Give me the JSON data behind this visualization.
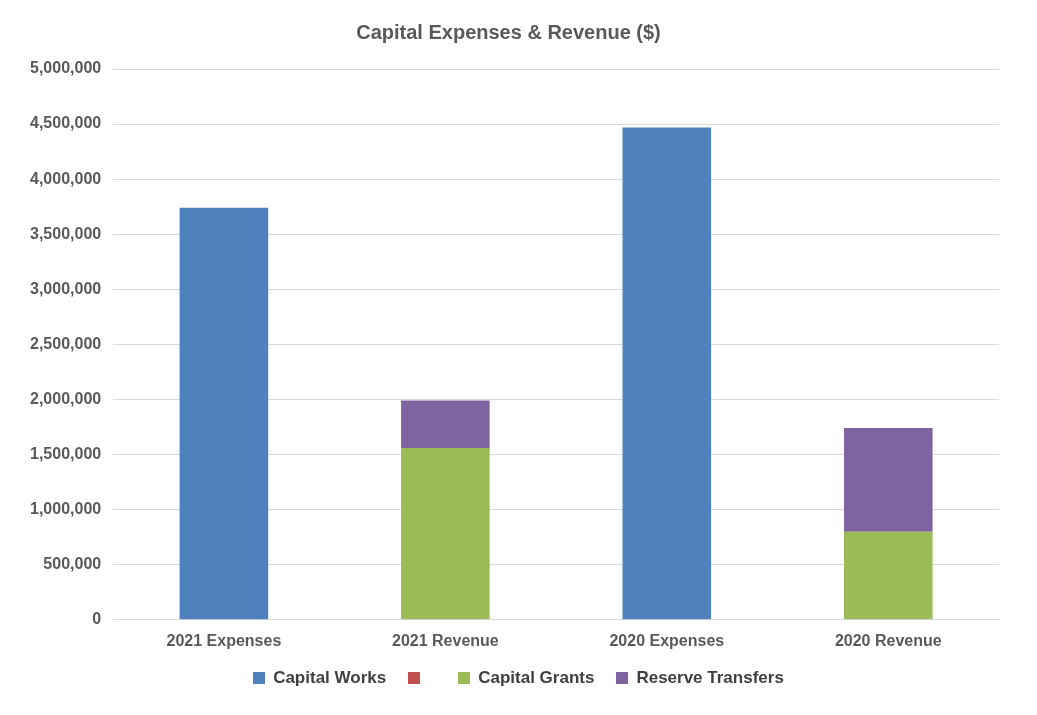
{
  "chart_data": {
    "type": "bar",
    "title": "Capital Expenses & Revenue ($)",
    "categories": [
      "2021 Expenses",
      "2021 Revenue",
      "2020 Expenses",
      "2020 Revenue"
    ],
    "stacked": true,
    "series": [
      {
        "name": "Capital Works",
        "color": "#4f81bd",
        "values": [
          3740000,
          0,
          4470000,
          0
        ]
      },
      {
        "color": "#c0504d",
        "values": [
          0,
          0,
          0,
          0
        ]
      },
      {
        "name": "Capital Grants",
        "color": "#9bbb59",
        "values": [
          0,
          1560000,
          0,
          800000
        ]
      },
      {
        "name": "Reserve Transfers",
        "color": "#8064a2",
        "values": [
          0,
          430000,
          0,
          940000
        ]
      }
    ],
    "ylim": [
      0,
      5000000
    ],
    "yticks": [
      0,
      {
        "value": 500000,
        "label": "500,000"
      },
      {
        "value": 1000000,
        "label": "1,000,000"
      },
      {
        "value": 1500000,
        "label": "1,500,000"
      },
      {
        "value": 2000000,
        "label": "2,000,000"
      },
      {
        "value": 2500000,
        "label": "2,500,000"
      },
      {
        "value": 3000000,
        "label": "3,000,000"
      },
      {
        "value": 3500000,
        "label": "3,500,000"
      },
      {
        "value": 4000000,
        "label": "4,000,000"
      },
      {
        "value": 4500000,
        "label": "4,500,000"
      },
      {
        "value": 5000000,
        "label": "5,000,000"
      }
    ],
    "grid": "y",
    "legend": "bottom"
  }
}
